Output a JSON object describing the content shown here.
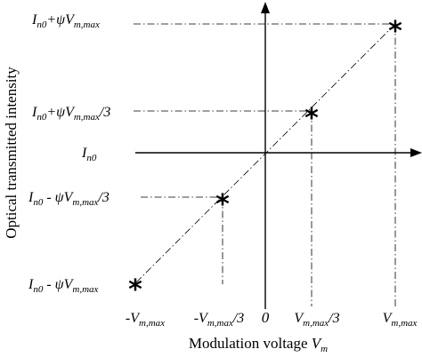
{
  "diagram": {
    "y_axis_title": "Optical transmitted intensity",
    "x_axis_title": {
      "text": "Modulation  voltage ",
      "variable": "V",
      "subscript": "m"
    },
    "origin_label": "0",
    "y_labels": {
      "top": {
        "base": "I",
        "sub": "n0",
        "mid": "+ψV",
        "sub2": "m,max",
        "tail": ""
      },
      "upper": {
        "base": "I",
        "sub": "n0",
        "mid": "+ψV",
        "sub2": "m,max",
        "tail": "/3"
      },
      "center": {
        "base": "I",
        "sub": "n0"
      },
      "lower": {
        "base": "I",
        "sub": "n0",
        "mid": " - ψV",
        "sub2": "m,max",
        "tail": "/3"
      },
      "bottom": {
        "base": "I",
        "sub": "n0",
        "mid": " - ψV",
        "sub2": "m,max",
        "tail": ""
      }
    },
    "x_labels": {
      "neg_full": {
        "pre": "-V",
        "sub": "m,max",
        "tail": ""
      },
      "neg_third": {
        "pre": "-V",
        "sub": "m,max",
        "tail": "/3"
      },
      "pos_third": {
        "pre": "V",
        "sub": "m,max",
        "tail": "/3"
      },
      "pos_full": {
        "pre": "V",
        "sub": "m,max",
        "tail": ""
      }
    },
    "point_marker": "*",
    "point_values": [
      -1,
      -0.3333,
      0.3333,
      1
    ]
  }
}
